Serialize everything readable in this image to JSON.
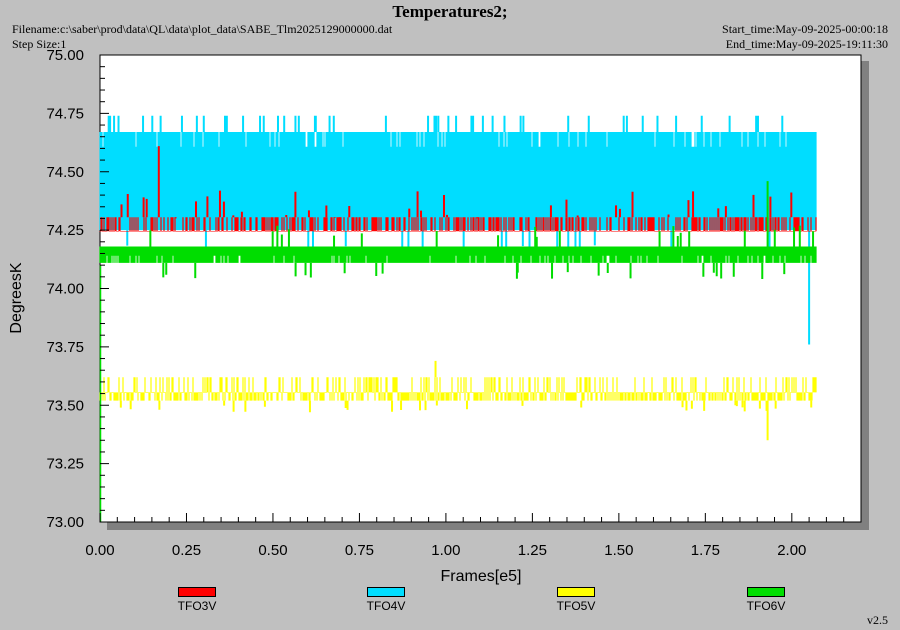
{
  "header": {
    "title": "Temperatures2;",
    "filename": "Filename:c:\\saber\\prod\\data\\QL\\data\\plot_data\\SABE_Tlm2025129000000.dat",
    "step_size": "Step Size:1",
    "start_time": "Start_time:May-09-2025-00:00:18",
    "end_time": "End_time:May-09-2025-19:11:30"
  },
  "version": "v2.5",
  "chart_data": {
    "type": "line",
    "title": "Temperatures2;",
    "xlabel": "Frames[e5]",
    "ylabel": "DegreesK",
    "xlim": [
      0.0,
      2.2
    ],
    "ylim": [
      73.0,
      75.0
    ],
    "x_ticks": [
      "0.00",
      "0.25",
      "0.50",
      "0.75",
      "1.00",
      "1.25",
      "1.50",
      "1.75",
      "2.00"
    ],
    "y_ticks": [
      "73.00",
      "73.25",
      "73.50",
      "73.75",
      "74.00",
      "74.25",
      "74.50",
      "74.75",
      "75.00"
    ],
    "x_end": 2.07,
    "grid": false,
    "legend_position": "bottom",
    "series": [
      {
        "name": "TFO3V",
        "color": "#ff0000",
        "levels": [
          74.245,
          74.305
        ],
        "min": 74.245,
        "max": 74.61
      },
      {
        "name": "TFO4V",
        "color": "#00ddff",
        "levels": [
          74.25,
          74.67
        ],
        "min": 73.76,
        "max": 74.74
      },
      {
        "name": "TFO5V",
        "color": "#ffff00",
        "levels": [
          73.52,
          73.62
        ],
        "min": 73.35,
        "max": 73.69
      },
      {
        "name": "TFO6V",
        "color": "#00dd00",
        "levels": [
          74.11,
          74.18
        ],
        "min": 74.04,
        "max": 74.46
      }
    ]
  }
}
